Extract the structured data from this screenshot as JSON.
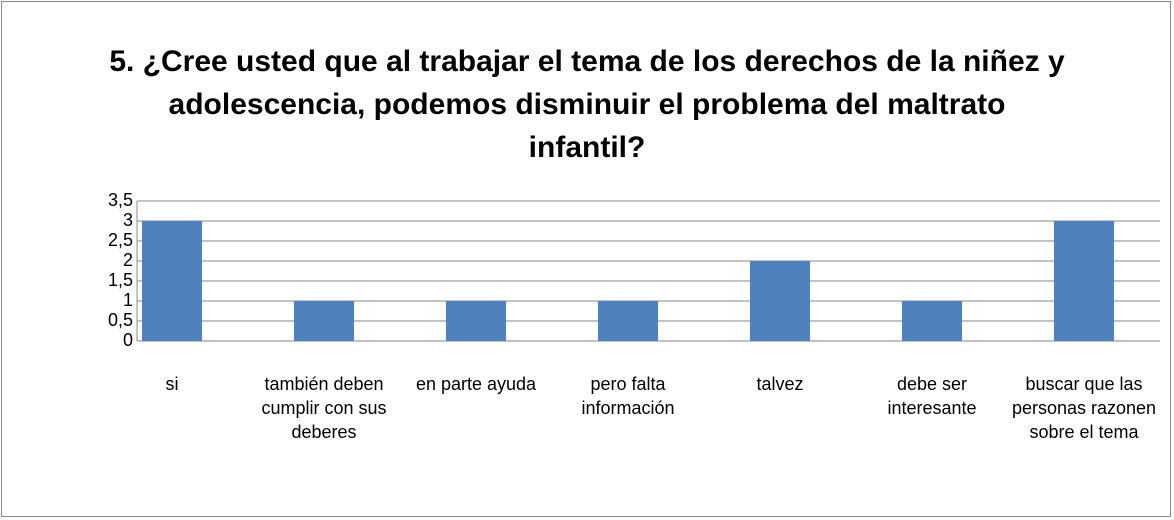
{
  "chart_data": {
    "type": "bar",
    "title": "5. ¿Cree usted que al trabajar el tema de los derechos de la niñez y adolescencia, podemos disminuir el problema del maltrato infantil?",
    "categories": [
      "si",
      "también deben cumplir con sus deberes",
      "en parte ayuda",
      "pero falta información",
      "talvez",
      "debe ser interesante",
      "buscar que las personas razonen sobre el tema"
    ],
    "values": [
      3,
      1,
      1,
      1,
      2,
      1,
      3
    ],
    "color": "#4f81bd",
    "ylim": [
      0,
      3.5
    ],
    "yticks": [
      0,
      {
        "value": 0.5,
        "label": "0,5"
      },
      1,
      {
        "value": 1.5,
        "label": "1,5"
      },
      2,
      {
        "value": 2.5,
        "label": "2,5"
      },
      3,
      {
        "value": 3.5,
        "label": "3,5"
      }
    ],
    "grid": true
  }
}
